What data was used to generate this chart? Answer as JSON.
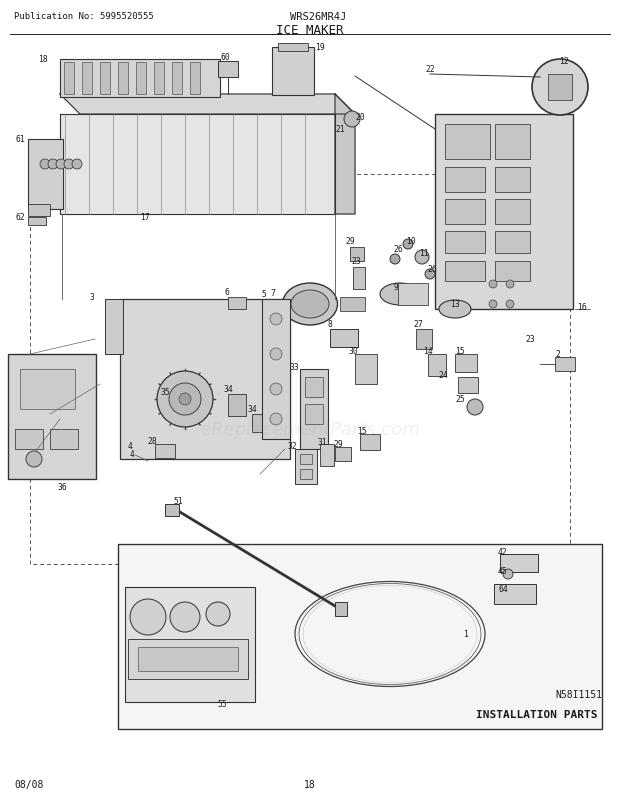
{
  "pub_no": "Publication No: 5995520555",
  "model": "WRS26MR4J",
  "title": "ICE MAKER",
  "footer_left": "08/08",
  "footer_center": "18",
  "diagram_id": "N58I1151",
  "bg_color": "#ffffff",
  "fig_width": 6.2,
  "fig_height": 8.03,
  "dpi": 100,
  "watermark_text": "eReplacementParts.com",
  "watermark_alpha": 0.18
}
